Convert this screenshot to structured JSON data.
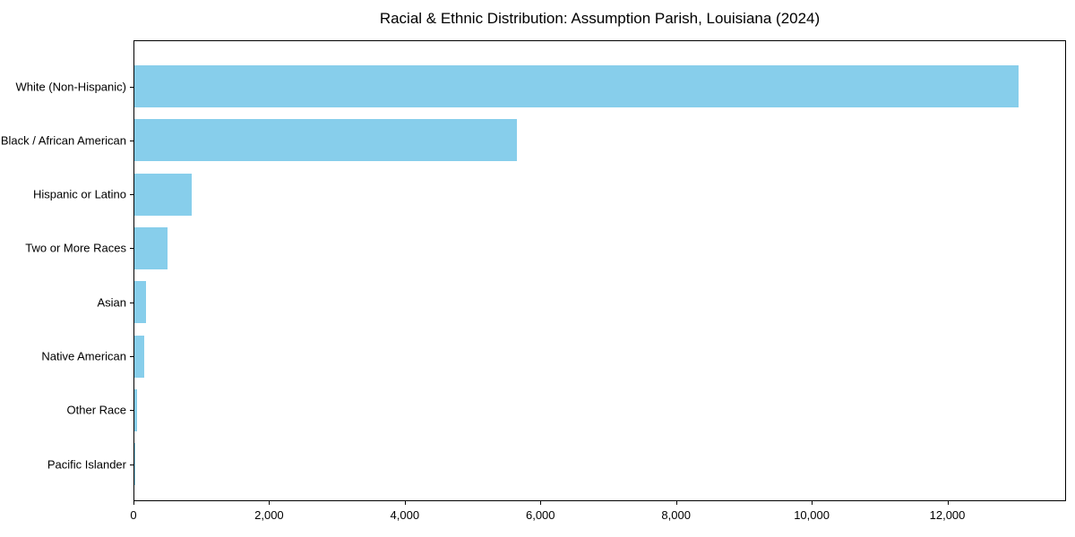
{
  "chart_data": {
    "type": "bar",
    "orientation": "horizontal",
    "title": "Racial & Ethnic Distribution: Assumption Parish, Louisiana (2024)",
    "categories": [
      "White (Non-Hispanic)",
      "Black / African American",
      "Hispanic or Latino",
      "Two or More Races",
      "Asian",
      "Native American",
      "Other Race",
      "Pacific Islander"
    ],
    "values": [
      13040,
      5640,
      845,
      490,
      170,
      140,
      40,
      5
    ],
    "xlabel": "",
    "ylabel": "",
    "xlim": [
      0,
      13750
    ],
    "xticks": [
      0,
      2000,
      4000,
      6000,
      8000,
      10000,
      12000
    ],
    "xtick_labels": [
      "0",
      "2,000",
      "4,000",
      "6,000",
      "8,000",
      "10,000",
      "12,000"
    ],
    "bar_color": "#87CEEB",
    "frame_color": "#000000",
    "background_color": "#ffffff",
    "grid": false,
    "legend_position": "none"
  }
}
